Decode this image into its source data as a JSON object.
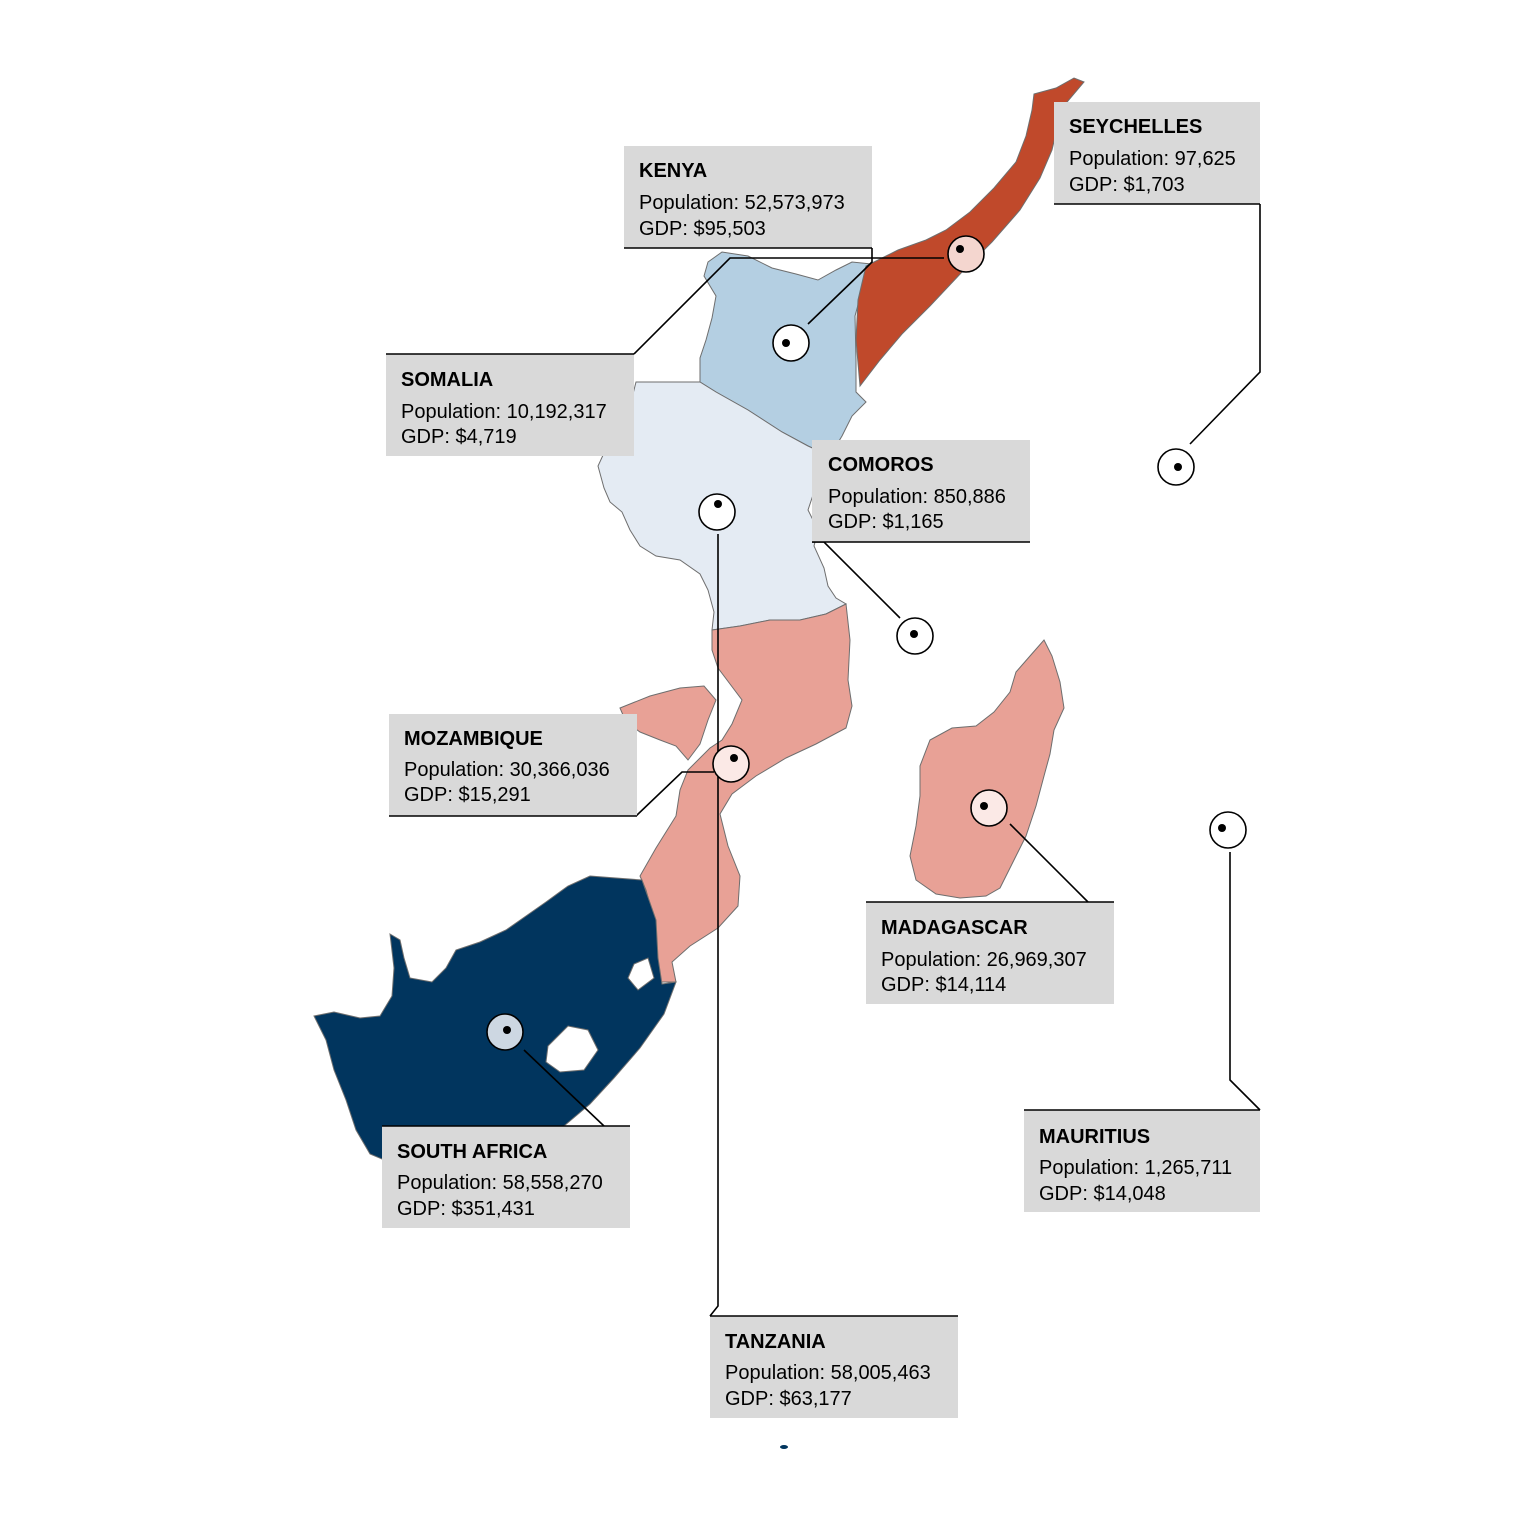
{
  "colors": {
    "very_low": "#e4ebf3",
    "low": "#b4cfe2",
    "high": "#e8a196",
    "very_high": "#c0492b",
    "highest": "#01355e",
    "label_background": "#d9d9d9"
  },
  "countries": [
    {
      "key": "kenya",
      "name": "KENYA",
      "population": "Population: 52,573,973",
      "gdp": "GDP: $95,503",
      "fill": "#b4cfe2",
      "marker_fill": "#ffffff"
    },
    {
      "key": "seychelles",
      "name": "SEYCHELLES",
      "population": "Population: 97,625",
      "gdp": "GDP: $1,703",
      "fill": null,
      "marker_fill": "#ffffff"
    },
    {
      "key": "somalia",
      "name": "SOMALIA",
      "population": "Population: 10,192,317",
      "gdp": "GDP: $4,719",
      "fill": "#c0492b",
      "marker_fill": "#f4d6cf"
    },
    {
      "key": "comoros",
      "name": "COMOROS",
      "population": "Population: 850,886",
      "gdp": "GDP: $1,165",
      "fill": null,
      "marker_fill": "#ffffff"
    },
    {
      "key": "tanzania",
      "name": "TANZANIA",
      "population": "Population: 58,005,463",
      "gdp": "GDP: $63,177",
      "fill": "#e4ebf3",
      "marker_fill": "#ffffff"
    },
    {
      "key": "mozambique",
      "name": "MOZAMBIQUE",
      "population": "Population: 30,366,036",
      "gdp": "GDP: $15,291",
      "fill": "#e8a196",
      "marker_fill": "#fbe9e6"
    },
    {
      "key": "madagascar",
      "name": "MADAGASCAR",
      "population": "Population: 26,969,307",
      "gdp": "GDP: $14,114",
      "fill": "#e8a196",
      "marker_fill": "#fbe9e6"
    },
    {
      "key": "mauritius",
      "name": "MAURITIUS",
      "population": "Population: 1,265,711",
      "gdp": "GDP: $14,048",
      "fill": null,
      "marker_fill": "#ffffff"
    },
    {
      "key": "south_africa",
      "name": "SOUTH AFRICA",
      "population": "Population: 58,558,270",
      "gdp": "GDP: $351,431",
      "fill": "#01355e",
      "marker_fill": "#cdd7e2"
    }
  ]
}
